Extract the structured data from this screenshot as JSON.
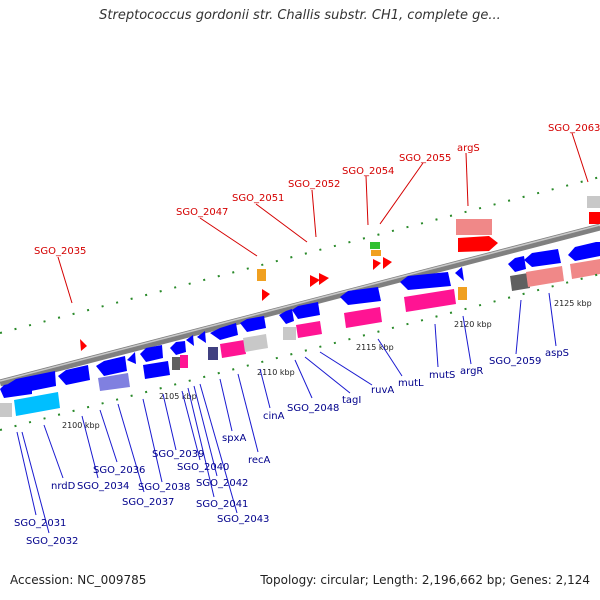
{
  "title": "Streptococcus gordonii str. Challis substr. CH1, complete ge...",
  "accession": "Accession: NC_009785",
  "summary": "Topology: circular; Length: 2,196,662 bp; Genes: 2,124",
  "colors": {
    "forward_label": "#d40000",
    "reverse_label": "#00008b",
    "backbone": "#808080"
  },
  "kbp_ticks": [
    "2100 kbp",
    "2105 kbp",
    "2110 kbp",
    "2115 kbp",
    "2120 kbp",
    "2125 kbp"
  ],
  "forward_labels": [
    "SGO_2035",
    "SGO_2047",
    "SGO_2051",
    "SGO_2052",
    "SGO_2054",
    "SGO_2055",
    "argS",
    "SGO_2063"
  ],
  "reverse_labels": [
    "SGO_2031",
    "SGO_2032",
    "nrdD",
    "SGO_2034",
    "SGO_2036",
    "SGO_2037",
    "SGO_2038",
    "SGO_2039",
    "SGO_2040",
    "SGO_2041",
    "SGO_2042",
    "SGO_2043",
    "spxA",
    "recA",
    "cinA",
    "SGO_2048",
    "tagI",
    "ruvA",
    "mutL",
    "mutS",
    "argR",
    "SGO_2059",
    "aspS"
  ]
}
